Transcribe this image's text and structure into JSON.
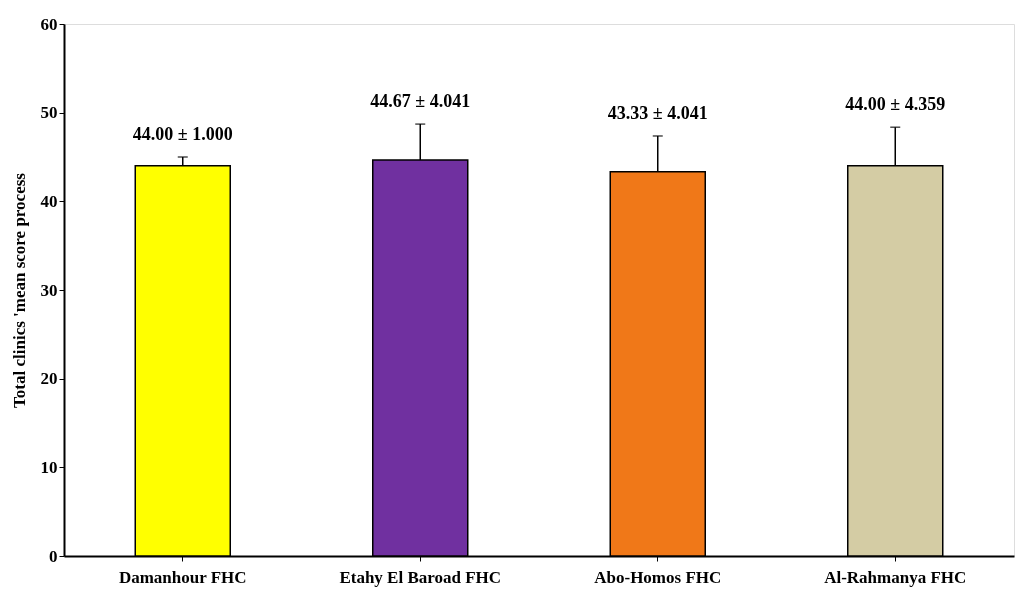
{
  "chart_data": {
    "type": "bar",
    "ylabel": "Total clinics 'mean score process",
    "categories": [
      "Damanhour FHC",
      "Etahy El Baroad FHC",
      "Abo-Homos FHC",
      "Al-Rahmanya FHC"
    ],
    "values": [
      44.0,
      44.67,
      43.33,
      44.0
    ],
    "colors": [
      "#ffff00",
      "#7030a0",
      "#f07818",
      "#d4cca4"
    ],
    "errors": [
      [
        44.0,
        45.0
      ],
      [
        44.67,
        48.711
      ],
      [
        43.33,
        47.371
      ],
      [
        44.0,
        48.359
      ]
    ],
    "value_labels": [
      "44.00 ± 1.000",
      "44.67 ± 4.041",
      "43.33 ± 4.041",
      "44.00 ± 4.359"
    ],
    "ylim": [
      0,
      60
    ],
    "yticks": [
      0,
      10,
      20,
      30,
      40,
      50,
      60
    ],
    "grid": false,
    "legend": false
  }
}
